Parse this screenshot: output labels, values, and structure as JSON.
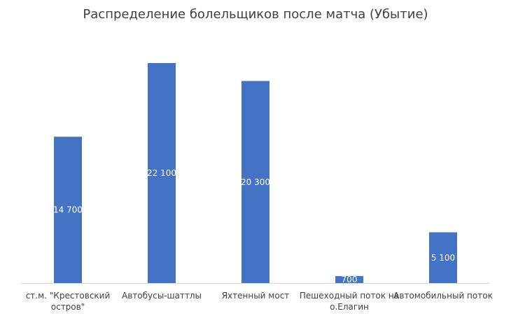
{
  "chart_data": {
    "type": "bar",
    "title": "Распределение болельщиков после матча (Убытие)",
    "categories": [
      "ст.м. \"Крестовский остров\"",
      "Автобусы-шаттлы",
      "Яхтенный мост",
      "Пешеходный поток на о.Елагин",
      "Автомобильный поток"
    ],
    "category_label_lines": [
      [
        "ст.м. \"Крестовский",
        "остров\""
      ],
      [
        "Автобусы-шаттлы"
      ],
      [
        "Яхтенный мост"
      ],
      [
        "Пешеходный поток на",
        "о.Елагин"
      ],
      [
        "Автомобильный поток"
      ]
    ],
    "values": [
      14700,
      22100,
      20300,
      700,
      5100
    ],
    "data_labels": [
      "14 700",
      "22 100",
      "20 300",
      "700",
      "5 100"
    ],
    "xlabel": "",
    "ylabel": "",
    "ylim": [
      0,
      22100
    ],
    "grid": false,
    "legend": "none",
    "bar_color": "#4472c4"
  }
}
